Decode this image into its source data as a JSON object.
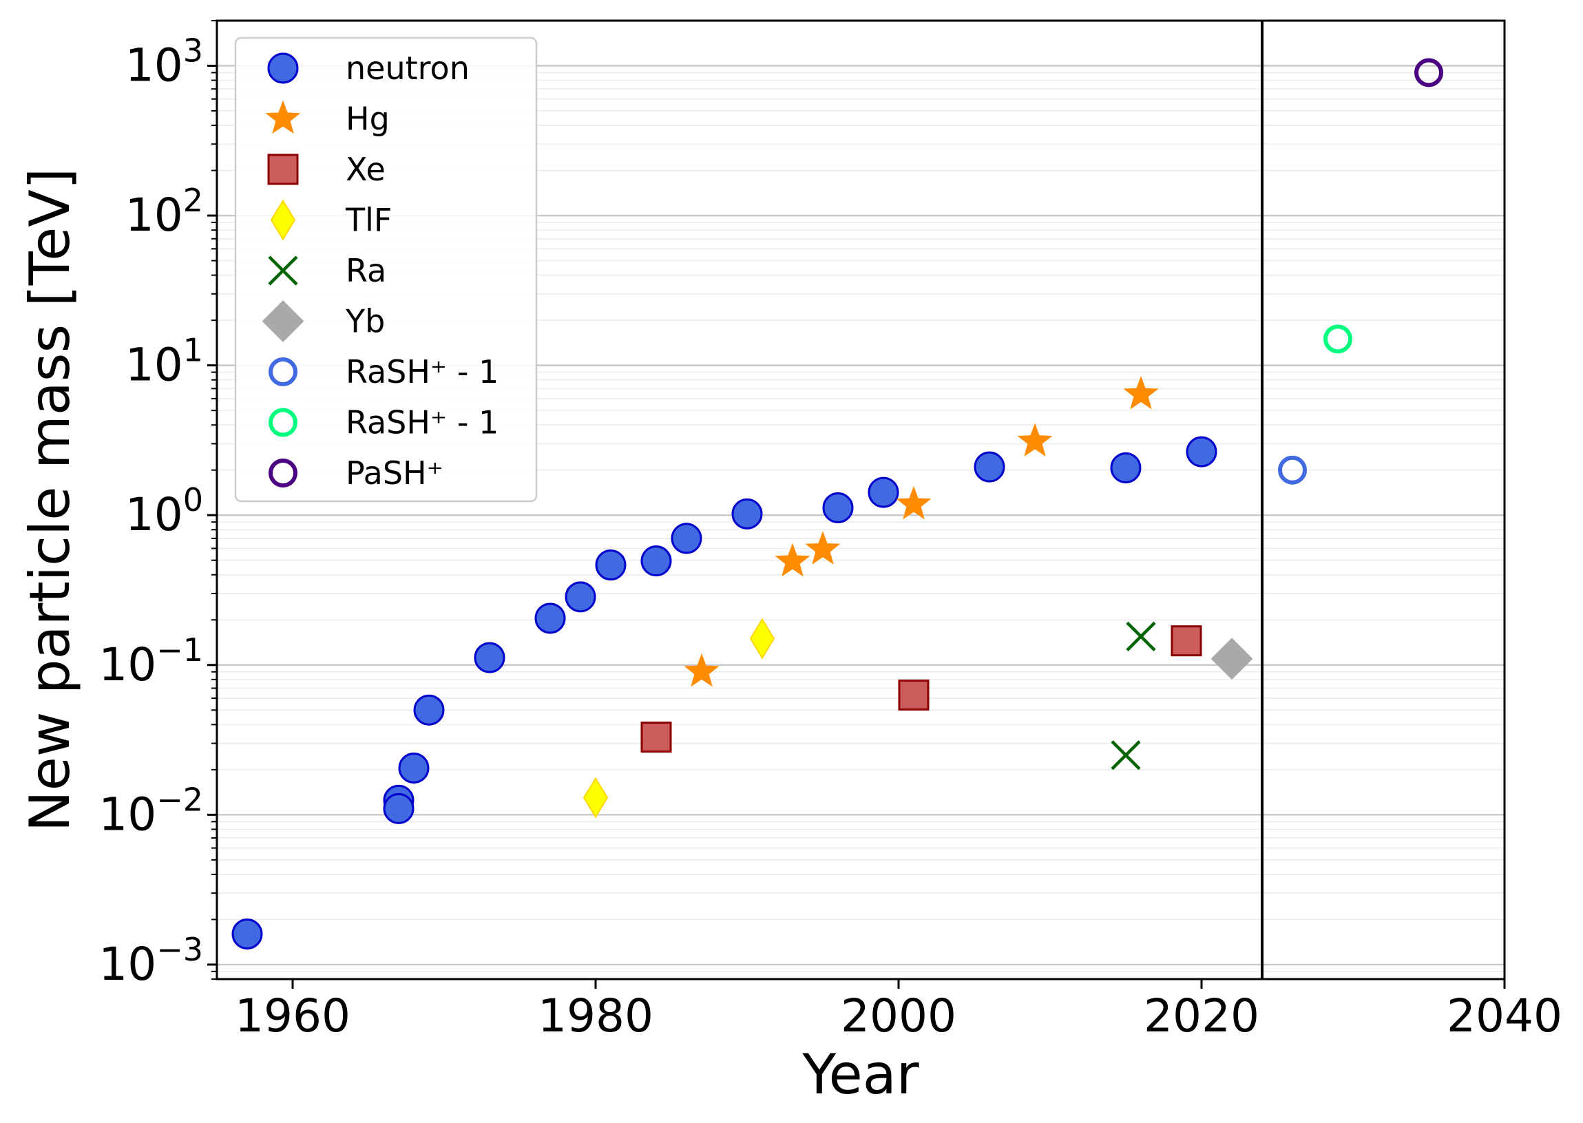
{
  "chart_data": {
    "type": "scatter",
    "xlabel": "Year",
    "ylabel": "New particle mass [TeV]",
    "xlim": [
      1955,
      2040
    ],
    "ylim": [
      0.0008,
      2000
    ],
    "y_scale": "log",
    "x_ticks": [
      {
        "value": 1960,
        "label": "1960"
      },
      {
        "value": 1980,
        "label": "1980"
      },
      {
        "value": 2000,
        "label": "2000"
      },
      {
        "value": 2020,
        "label": "2020"
      },
      {
        "value": 2040,
        "label": "2040"
      }
    ],
    "y_ticks": [
      {
        "value": 0.001,
        "base": "10",
        "exp": "−3"
      },
      {
        "value": 0.01,
        "base": "10",
        "exp": "−2"
      },
      {
        "value": 0.1,
        "base": "10",
        "exp": "−1"
      },
      {
        "value": 1,
        "base": "10",
        "exp": "0"
      },
      {
        "value": 10,
        "base": "10",
        "exp": "1"
      },
      {
        "value": 100,
        "base": "10",
        "exp": "2"
      },
      {
        "value": 1000,
        "base": "10",
        "exp": "3"
      }
    ],
    "grid": "horizontal major and minor",
    "legend_position": "top-left",
    "vertical_line": {
      "x": 2024
    },
    "series": [
      {
        "name": "neutron",
        "marker": "circle",
        "fill": "#4169E1",
        "edge": "#0000CD",
        "points": [
          [
            1957,
            0.0016
          ],
          [
            1967,
            0.0125
          ],
          [
            1967,
            0.011
          ],
          [
            1968,
            0.0205
          ],
          [
            1969,
            0.05
          ],
          [
            1973,
            0.112
          ],
          [
            1977,
            0.205
          ],
          [
            1979,
            0.285
          ],
          [
            1981,
            0.465
          ],
          [
            1984,
            0.495
          ],
          [
            1986,
            0.7
          ],
          [
            1990,
            1.02
          ],
          [
            1996,
            1.12
          ],
          [
            1999,
            1.42
          ],
          [
            2006,
            2.1
          ],
          [
            2015,
            2.07
          ],
          [
            2020,
            2.65
          ]
        ]
      },
      {
        "name": "Hg",
        "marker": "star",
        "fill": "#FF8C00",
        "edge": "#FF8C00",
        "points": [
          [
            1987,
            0.09
          ],
          [
            1993,
            0.49
          ],
          [
            1995,
            0.59
          ],
          [
            2001,
            1.18
          ],
          [
            2009,
            3.1
          ],
          [
            2016,
            6.4
          ]
        ]
      },
      {
        "name": "Xe",
        "marker": "square",
        "fill": "#CD5C5C",
        "edge": "#8B0000",
        "points": [
          [
            1984,
            0.033
          ],
          [
            2001,
            0.063
          ],
          [
            2019,
            0.145
          ]
        ]
      },
      {
        "name": "TlF",
        "marker": "thin-diamond",
        "fill": "#FFFF00",
        "edge": "#FFD700",
        "points": [
          [
            1980,
            0.013
          ],
          [
            1991,
            0.15
          ]
        ]
      },
      {
        "name": "Ra",
        "marker": "x",
        "fill": "none",
        "edge": "#006400",
        "points": [
          [
            2015,
            0.025
          ],
          [
            2016,
            0.155
          ]
        ]
      },
      {
        "name": "Yb",
        "marker": "diamond",
        "fill": "#A9A9A9",
        "edge": "#A9A9A9",
        "points": [
          [
            2022,
            0.11
          ]
        ]
      },
      {
        "name": "RaSH⁺ - 1",
        "marker": "open-circle",
        "fill": "none",
        "edge": "#4169E1",
        "points": [
          [
            2026,
            2.0
          ]
        ]
      },
      {
        "name": "RaSH⁺ - 1",
        "marker": "open-circle",
        "fill": "none",
        "edge": "#00FF7F",
        "points": [
          [
            2029,
            15
          ]
        ]
      },
      {
        "name": "PaSH⁺",
        "marker": "open-circle",
        "fill": "none",
        "edge": "#4B0082",
        "points": [
          [
            2035,
            900
          ]
        ]
      }
    ]
  }
}
